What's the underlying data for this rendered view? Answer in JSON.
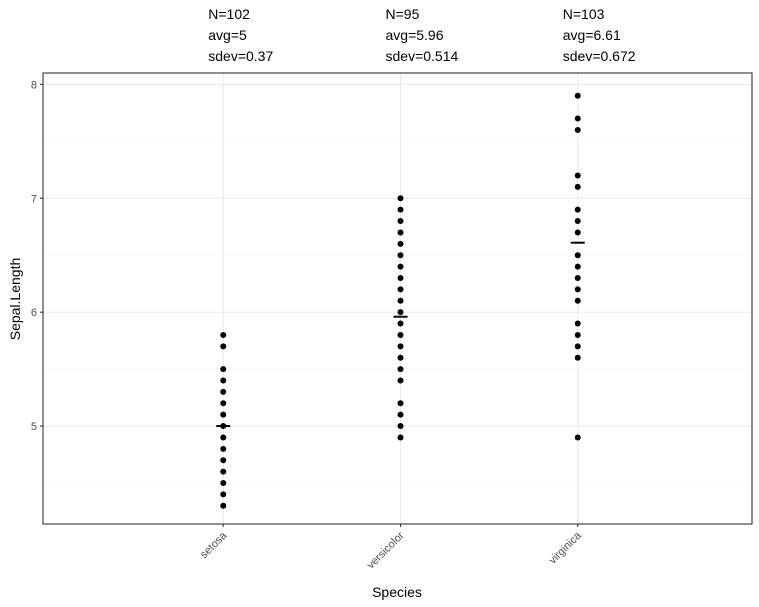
{
  "chart_data": {
    "type": "scatter",
    "xlabel": "Species",
    "ylabel": "Sepal.Length",
    "categories": [
      "setosa",
      "versicolor",
      "virginica"
    ],
    "ylim": [
      4.14,
      8.1
    ],
    "yticks": [
      5,
      6,
      7,
      8
    ],
    "ytick_labels": [
      "5",
      "6",
      "7",
      "8"
    ],
    "grid": true,
    "stats": [
      {
        "n": "N=102",
        "avg": "avg=5",
        "sdev": "sdev=0.37"
      },
      {
        "n": "N=95",
        "avg": "avg=5.96",
        "sdev": "sdev=0.514"
      },
      {
        "n": "N=103",
        "avg": "avg=6.61",
        "sdev": "sdev=0.672"
      }
    ],
    "means": [
      5.0,
      5.96,
      6.61
    ],
    "series": [
      {
        "category": "setosa",
        "values": [
          4.3,
          4.4,
          4.5,
          4.6,
          4.7,
          4.8,
          4.9,
          5.0,
          5.1,
          5.2,
          5.3,
          5.4,
          5.5,
          5.7,
          5.8
        ]
      },
      {
        "category": "versicolor",
        "values": [
          4.9,
          5.0,
          5.1,
          5.2,
          5.4,
          5.5,
          5.6,
          5.7,
          5.8,
          5.9,
          6.0,
          6.1,
          6.2,
          6.3,
          6.4,
          6.5,
          6.6,
          6.7,
          6.8,
          6.9,
          7.0
        ]
      },
      {
        "category": "virginica",
        "values": [
          4.9,
          5.6,
          5.7,
          5.8,
          5.9,
          6.1,
          6.2,
          6.3,
          6.4,
          6.5,
          6.7,
          6.8,
          6.9,
          7.1,
          7.2,
          7.6,
          7.7,
          7.9
        ]
      }
    ]
  }
}
